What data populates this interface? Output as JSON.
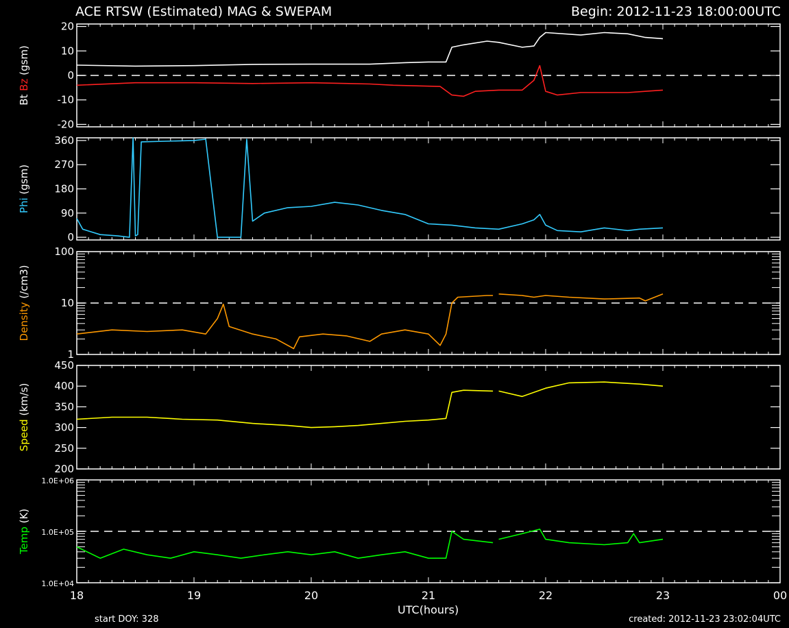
{
  "header": {
    "title": "ACE RTSW (Estimated) MAG & SWEPAM",
    "begin": "Begin: 2012-11-23 18:00:00UTC"
  },
  "footer": {
    "start_doy": "start DOY: 328",
    "created": "created: 2012-11-23 23:02:04UTC"
  },
  "chart_data": {
    "type": "line",
    "xlabel": "UTC(hours)",
    "x_ticks": [
      "18",
      "19",
      "20",
      "21",
      "22",
      "23",
      "00"
    ],
    "xlim": [
      18,
      24
    ],
    "panels": [
      {
        "id": "mag",
        "ylabel_parts": [
          {
            "text": "Bt",
            "color": "#ffffff"
          },
          {
            "text": " ",
            "color": "#ffffff"
          },
          {
            "text": "Bz",
            "color": "#ff2020"
          },
          {
            "text": " (gsm)",
            "color": "#ffffff"
          }
        ],
        "scale": "linear",
        "ylim": [
          -21,
          21
        ],
        "ticks": [
          {
            "v": 20,
            "label": "20"
          },
          {
            "v": 10,
            "label": "10"
          },
          {
            "v": 0,
            "label": "0"
          },
          {
            "v": -10,
            "label": "-10"
          },
          {
            "v": -20,
            "label": "-20"
          }
        ],
        "dashed_ref": 0,
        "series": [
          {
            "name": "Bt",
            "color": "#ffffff",
            "segments": [
              [
                [
                  18.0,
                  4.2
                ],
                [
                  18.5,
                  3.8
                ],
                [
                  19.0,
                  4.0
                ],
                [
                  19.5,
                  4.5
                ],
                [
                  20.0,
                  4.6
                ],
                [
                  20.5,
                  4.6
                ],
                [
                  20.8,
                  5.2
                ],
                [
                  21.0,
                  5.5
                ],
                [
                  21.15,
                  5.5
                ],
                [
                  21.2,
                  11.5
                ],
                [
                  21.3,
                  12.5
                ],
                [
                  21.5,
                  14.0
                ],
                [
                  21.6,
                  13.5
                ],
                [
                  21.8,
                  11.5
                ],
                [
                  21.9,
                  12.0
                ],
                [
                  21.95,
                  15.5
                ],
                [
                  22.0,
                  17.5
                ],
                [
                  22.3,
                  16.5
                ],
                [
                  22.5,
                  17.5
                ],
                [
                  22.7,
                  17.0
                ],
                [
                  22.85,
                  15.5
                ],
                [
                  23.0,
                  15.0
                ]
              ]
            ]
          },
          {
            "name": "Bz",
            "color": "#ff2020",
            "segments": [
              [
                [
                  18.0,
                  -4.0
                ],
                [
                  18.5,
                  -3.0
                ],
                [
                  19.0,
                  -3.0
                ],
                [
                  19.5,
                  -3.3
                ],
                [
                  20.0,
                  -3.0
                ],
                [
                  20.5,
                  -3.5
                ],
                [
                  20.7,
                  -4.0
                ],
                [
                  21.1,
                  -4.5
                ],
                [
                  21.2,
                  -8.0
                ],
                [
                  21.3,
                  -8.5
                ],
                [
                  21.4,
                  -6.5
                ],
                [
                  21.6,
                  -6.0
                ],
                [
                  21.8,
                  -6.0
                ],
                [
                  21.9,
                  -2.0
                ],
                [
                  21.95,
                  4.0
                ],
                [
                  22.0,
                  -6.5
                ],
                [
                  22.1,
                  -8.0
                ],
                [
                  22.3,
                  -7.0
                ],
                [
                  22.5,
                  -7.0
                ],
                [
                  22.7,
                  -7.0
                ],
                [
                  22.85,
                  -6.5
                ],
                [
                  23.0,
                  -6.0
                ]
              ]
            ]
          }
        ]
      },
      {
        "id": "phi",
        "ylabel_parts": [
          {
            "text": "Phi",
            "color": "#33ccff"
          },
          {
            "text": " (gsm)",
            "color": "#ffffff"
          }
        ],
        "scale": "linear",
        "ylim": [
          -10,
          370
        ],
        "ticks": [
          {
            "v": 360,
            "label": "360"
          },
          {
            "v": 270,
            "label": "270"
          },
          {
            "v": 180,
            "label": "180"
          },
          {
            "v": 90,
            "label": "90"
          },
          {
            "v": 0,
            "label": "0"
          }
        ],
        "dashed_ref": null,
        "series": [
          {
            "name": "Phi",
            "color": "#33ccff",
            "segments": [
              [
                [
                  18.0,
                  70
                ],
                [
                  18.05,
                  30
                ],
                [
                  18.2,
                  10
                ],
                [
                  18.35,
                  5
                ],
                [
                  18.45,
                  0
                ],
                [
                  18.48,
                  370
                ],
                [
                  18.5,
                  5
                ],
                [
                  18.52,
                  10
                ],
                [
                  18.55,
                  355
                ],
                [
                  19.0,
                  360
                ],
                [
                  19.1,
                  365
                ],
                [
                  19.2,
                  0
                ],
                [
                  19.4,
                  0
                ],
                [
                  19.45,
                  365
                ],
                [
                  19.5,
                  60
                ],
                [
                  19.6,
                  90
                ],
                [
                  19.8,
                  110
                ],
                [
                  20.0,
                  115
                ],
                [
                  20.2,
                  130
                ],
                [
                  20.4,
                  120
                ],
                [
                  20.6,
                  100
                ],
                [
                  20.8,
                  85
                ],
                [
                  21.0,
                  50
                ],
                [
                  21.2,
                  45
                ],
                [
                  21.4,
                  35
                ],
                [
                  21.6,
                  30
                ],
                [
                  21.8,
                  50
                ],
                [
                  21.9,
                  65
                ],
                [
                  21.95,
                  85
                ],
                [
                  22.0,
                  45
                ],
                [
                  22.1,
                  25
                ],
                [
                  22.3,
                  20
                ],
                [
                  22.5,
                  35
                ],
                [
                  22.7,
                  25
                ],
                [
                  22.8,
                  30
                ],
                [
                  23.0,
                  35
                ]
              ]
            ]
          }
        ]
      },
      {
        "id": "density",
        "ylabel_parts": [
          {
            "text": "Density",
            "color": "#ff9900"
          },
          {
            "text": " (/cm3)",
            "color": "#ffffff"
          }
        ],
        "scale": "log",
        "ylim": [
          1,
          100
        ],
        "ticks": [
          {
            "v": 100,
            "label": "100"
          },
          {
            "v": 10,
            "label": "10"
          },
          {
            "v": 1,
            "label": "1"
          }
        ],
        "dashed_ref": 10,
        "series": [
          {
            "name": "Density",
            "color": "#ff9900",
            "segments": [
              [
                [
                  18.0,
                  2.5
                ],
                [
                  18.3,
                  3.0
                ],
                [
                  18.6,
                  2.8
                ],
                [
                  18.9,
                  3.0
                ],
                [
                  19.1,
                  2.5
                ],
                [
                  19.2,
                  5.0
                ],
                [
                  19.25,
                  9.5
                ],
                [
                  19.3,
                  3.5
                ],
                [
                  19.5,
                  2.5
                ],
                [
                  19.7,
                  2.0
                ],
                [
                  19.85,
                  1.3
                ],
                [
                  19.9,
                  2.2
                ],
                [
                  20.1,
                  2.5
                ],
                [
                  20.3,
                  2.3
                ],
                [
                  20.5,
                  1.8
                ],
                [
                  20.6,
                  2.5
                ],
                [
                  20.8,
                  3.0
                ],
                [
                  21.0,
                  2.5
                ],
                [
                  21.1,
                  1.5
                ],
                [
                  21.15,
                  2.5
                ],
                [
                  21.2,
                  10
                ],
                [
                  21.25,
                  13
                ],
                [
                  21.5,
                  14
                ],
                [
                  21.55,
                  14
                ]
              ],
              [
                [
                  21.6,
                  15
                ],
                [
                  21.8,
                  14
                ],
                [
                  21.9,
                  13
                ],
                [
                  22.0,
                  14
                ],
                [
                  22.2,
                  13
                ],
                [
                  22.5,
                  12
                ],
                [
                  22.8,
                  12.5
                ],
                [
                  22.85,
                  11
                ],
                [
                  23.0,
                  15
                ]
              ]
            ]
          }
        ]
      },
      {
        "id": "speed",
        "ylabel_parts": [
          {
            "text": "Speed",
            "color": "#ffff00"
          },
          {
            "text": " (km/s)",
            "color": "#ffffff"
          }
        ],
        "scale": "linear",
        "ylim": [
          200,
          450
        ],
        "ticks": [
          {
            "v": 450,
            "label": "450"
          },
          {
            "v": 400,
            "label": "400"
          },
          {
            "v": 350,
            "label": "350"
          },
          {
            "v": 300,
            "label": "300"
          },
          {
            "v": 250,
            "label": "250"
          },
          {
            "v": 200,
            "label": "200"
          }
        ],
        "dashed_ref": null,
        "series": [
          {
            "name": "Speed",
            "color": "#ffff00",
            "segments": [
              [
                [
                  18.0,
                  320
                ],
                [
                  18.3,
                  325
                ],
                [
                  18.6,
                  325
                ],
                [
                  18.9,
                  320
                ],
                [
                  19.2,
                  318
                ],
                [
                  19.5,
                  310
                ],
                [
                  19.8,
                  305
                ],
                [
                  20.0,
                  300
                ],
                [
                  20.2,
                  302
                ],
                [
                  20.4,
                  305
                ],
                [
                  20.6,
                  310
                ],
                [
                  20.8,
                  315
                ],
                [
                  21.0,
                  318
                ],
                [
                  21.15,
                  322
                ],
                [
                  21.2,
                  385
                ],
                [
                  21.3,
                  390
                ],
                [
                  21.55,
                  388
                ]
              ],
              [
                [
                  21.6,
                  388
                ],
                [
                  21.8,
                  375
                ],
                [
                  22.0,
                  395
                ],
                [
                  22.2,
                  408
                ],
                [
                  22.5,
                  410
                ],
                [
                  22.8,
                  405
                ],
                [
                  23.0,
                  400
                ]
              ]
            ]
          }
        ]
      },
      {
        "id": "temp",
        "ylabel_parts": [
          {
            "text": "Temp",
            "color": "#00ff00"
          },
          {
            "text": " (K)",
            "color": "#ffffff"
          }
        ],
        "scale": "log",
        "ylim": [
          10000,
          1000000
        ],
        "ticks": [
          {
            "v": 1000000,
            "label": "1.0E+06"
          },
          {
            "v": 100000,
            "label": "1.0E+05"
          },
          {
            "v": 10000,
            "label": "1.0E+04"
          }
        ],
        "dashed_ref": 100000,
        "series": [
          {
            "name": "Temp",
            "color": "#00ff00",
            "segments": [
              [
                [
                  18.0,
                  50000
                ],
                [
                  18.2,
                  30000
                ],
                [
                  18.4,
                  45000
                ],
                [
                  18.6,
                  35000
                ],
                [
                  18.8,
                  30000
                ],
                [
                  19.0,
                  40000
                ],
                [
                  19.2,
                  35000
                ],
                [
                  19.4,
                  30000
                ],
                [
                  19.6,
                  35000
                ],
                [
                  19.8,
                  40000
                ],
                [
                  20.0,
                  35000
                ],
                [
                  20.2,
                  40000
                ],
                [
                  20.4,
                  30000
                ],
                [
                  20.6,
                  35000
                ],
                [
                  20.8,
                  40000
                ],
                [
                  21.0,
                  30000
                ],
                [
                  21.15,
                  30000
                ],
                [
                  21.2,
                  100000
                ],
                [
                  21.3,
                  70000
                ],
                [
                  21.55,
                  60000
                ]
              ],
              [
                [
                  21.6,
                  70000
                ],
                [
                  21.8,
                  90000
                ],
                [
                  21.95,
                  110000
                ],
                [
                  22.0,
                  70000
                ],
                [
                  22.2,
                  60000
                ],
                [
                  22.5,
                  55000
                ],
                [
                  22.7,
                  60000
                ],
                [
                  22.75,
                  90000
                ],
                [
                  22.8,
                  60000
                ],
                [
                  23.0,
                  70000
                ]
              ]
            ]
          }
        ]
      }
    ]
  }
}
